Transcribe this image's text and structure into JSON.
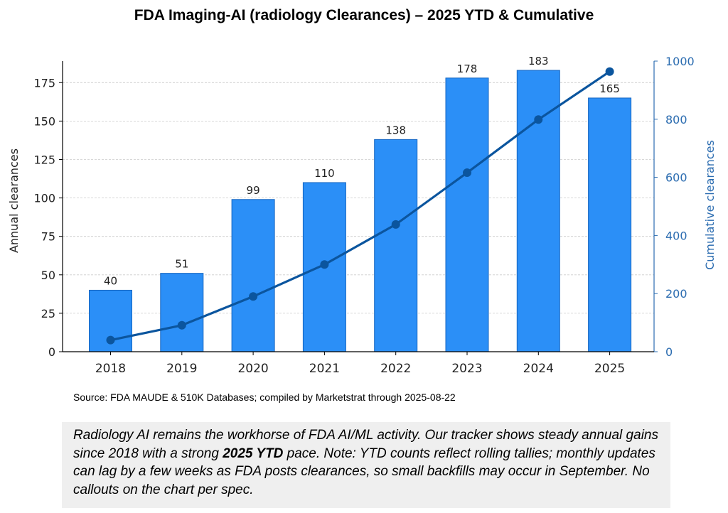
{
  "title": "FDA Imaging-AI (radiology Clearances) – 2025 YTD & Cumulative",
  "source": "Source: FDA MAUDE & 510K Databases; compiled by Marketstrat through 2025-08-22",
  "note": {
    "part1": "Radiology AI remains the workhorse of FDA AI/ML activity. Our tracker shows steady annual gains since 2018 with a strong ",
    "bold": "2025 YTD",
    "part2": " pace. Note: YTD counts reflect rolling tallies; monthly updates can lag by a few weeks as FDA posts clearances, so small backfills may occur in September. No callouts on the chart per spec."
  },
  "colors": {
    "bar_fill": "#2b8ff7",
    "bar_stroke": "#1565c0",
    "line": "#0b559e",
    "right_axis": "#2b6cb0"
  },
  "chart_data": {
    "type": "bar",
    "categories": [
      "2018",
      "2019",
      "2020",
      "2021",
      "2022",
      "2023",
      "2024",
      "2025"
    ],
    "series": [
      {
        "type": "bar",
        "axis": "left",
        "values": [
          40,
          51,
          99,
          110,
          138,
          178,
          183,
          165
        ]
      },
      {
        "type": "line",
        "axis": "right",
        "values": [
          40,
          91,
          190,
          300,
          438,
          616,
          799,
          964
        ]
      }
    ],
    "ylabel": "Annual clearances",
    "ylabel_right": "Cumulative clearances",
    "ylim": [
      0,
      189
    ],
    "ylim_right": [
      0,
      1000
    ],
    "yticks": [
      0,
      25,
      50,
      75,
      100,
      125,
      150,
      175
    ],
    "yticks_right": [
      0,
      200,
      400,
      600,
      800,
      1000
    ],
    "grid": true,
    "legend": "none"
  }
}
